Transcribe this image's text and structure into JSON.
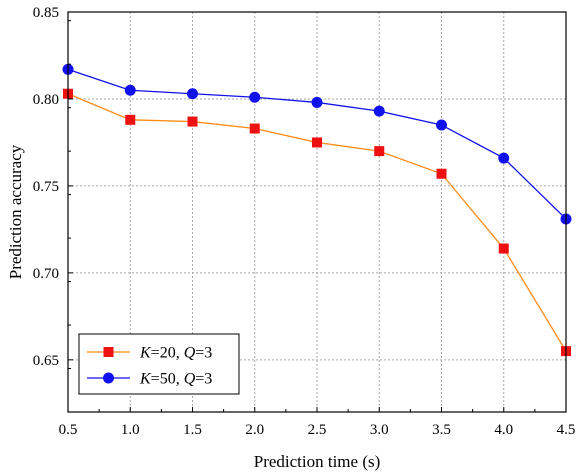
{
  "chart_data": {
    "type": "line",
    "xlabel": "Prediction time (s)",
    "ylabel": "Prediction accuracy",
    "xlim": [
      0.5,
      4.5
    ],
    "ylim": [
      0.62,
      0.85
    ],
    "x": [
      0.5,
      1.0,
      1.5,
      2.0,
      2.5,
      3.0,
      3.5,
      4.0,
      4.5
    ],
    "xticks": [
      "0.5",
      "1.0",
      "1.5",
      "2.0",
      "2.5",
      "3.0",
      "3.5",
      "4.0",
      "4.5"
    ],
    "yticks": [
      "0.65",
      "0.70",
      "0.75",
      "0.80",
      "0.85"
    ],
    "ytick_values": [
      0.65,
      0.7,
      0.75,
      0.8,
      0.85
    ],
    "grid": true,
    "legend_position": "bottom-left",
    "series": [
      {
        "name": "K=20, Q=3",
        "label_parts": [
          {
            "t": "K",
            "italic": true
          },
          {
            "t": "=20, ",
            "italic": false
          },
          {
            "t": "Q",
            "italic": true
          },
          {
            "t": "=3",
            "italic": false
          }
        ],
        "color": "#ff8c1a",
        "marker_color": "#ee1111",
        "marker": "square",
        "values": [
          0.803,
          0.788,
          0.787,
          0.783,
          0.775,
          0.77,
          0.757,
          0.714,
          0.655
        ]
      },
      {
        "name": "K=50, Q=3",
        "label_parts": [
          {
            "t": "K",
            "italic": true
          },
          {
            "t": "=50, ",
            "italic": false
          },
          {
            "t": "Q",
            "italic": true
          },
          {
            "t": "=3",
            "italic": false
          }
        ],
        "color": "#1111ee",
        "marker_color": "#1111ee",
        "marker": "circle",
        "values": [
          0.817,
          0.805,
          0.803,
          0.801,
          0.798,
          0.793,
          0.785,
          0.766,
          0.731
        ]
      }
    ]
  }
}
